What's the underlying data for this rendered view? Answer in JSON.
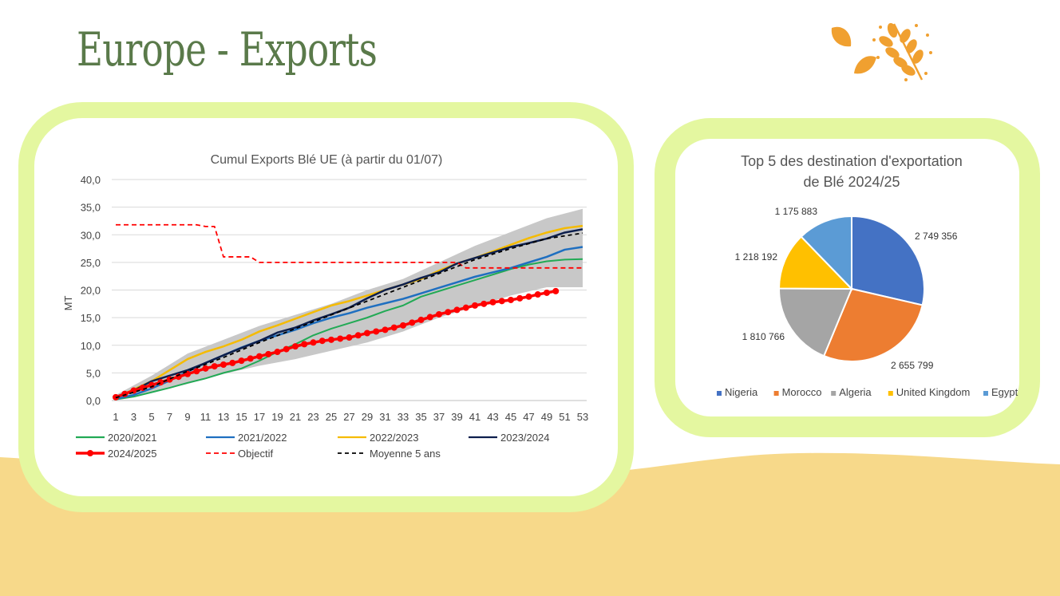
{
  "page": {
    "title": "Europe - Exports",
    "colors": {
      "title": "#5a7a4a",
      "frame": "#e4f7a0",
      "sand": "#f7d98a",
      "wheat": "#f0a030"
    },
    "icons": [
      "leaf-icon",
      "wheat-icon"
    ]
  },
  "chart_data": [
    {
      "type": "line",
      "title": "Cumul Exports Blé UE (à partir du 01/07)",
      "xlabel": "",
      "ylabel": "MT",
      "ylim": [
        0,
        40
      ],
      "yticks": [
        "0,0",
        "5,0",
        "10,0",
        "15,0",
        "20,0",
        "25,0",
        "30,0",
        "35,0",
        "40,0"
      ],
      "xticks": [
        1,
        3,
        5,
        7,
        9,
        11,
        13,
        15,
        17,
        19,
        21,
        23,
        25,
        27,
        29,
        31,
        33,
        35,
        37,
        39,
        41,
        43,
        45,
        47,
        49,
        51,
        53
      ],
      "grid": "horizontal",
      "legend_position": "bottom",
      "band": {
        "x": [
          1,
          5,
          9,
          13,
          17,
          21,
          25,
          29,
          33,
          37,
          41,
          45,
          49,
          53
        ],
        "min": [
          0.3,
          1.5,
          3.0,
          4.8,
          6.3,
          7.5,
          9.0,
          10.5,
          12.5,
          15.0,
          17.0,
          19.0,
          20.5,
          20.5
        ],
        "max": [
          1.0,
          4.5,
          8.5,
          11.0,
          13.5,
          15.5,
          17.5,
          20.0,
          22.0,
          25.0,
          28.0,
          30.5,
          33.0,
          34.7
        ]
      },
      "series": [
        {
          "name": "2020/2021",
          "color": "#22aa55",
          "width": 2,
          "x": [
            1,
            3,
            5,
            7,
            9,
            11,
            13,
            15,
            17,
            19,
            21,
            23,
            25,
            27,
            29,
            31,
            33,
            35,
            37,
            39,
            41,
            43,
            45,
            47,
            49,
            51,
            53
          ],
          "y": [
            0.2,
            0.7,
            1.5,
            2.3,
            3.2,
            4.0,
            5.0,
            5.8,
            7.2,
            8.8,
            10.2,
            11.8,
            13.0,
            14.0,
            15.0,
            16.2,
            17.2,
            18.8,
            19.8,
            20.8,
            21.8,
            22.8,
            23.8,
            24.6,
            25.2,
            25.5,
            25.6
          ]
        },
        {
          "name": "2021/2022",
          "color": "#1f6fc0",
          "width": 2.5,
          "x": [
            1,
            3,
            5,
            7,
            9,
            11,
            13,
            15,
            17,
            19,
            21,
            23,
            25,
            27,
            29,
            31,
            33,
            35,
            37,
            39,
            41,
            43,
            45,
            47,
            49,
            51,
            53
          ],
          "y": [
            0.3,
            1.0,
            2.2,
            3.6,
            5.2,
            6.8,
            8.2,
            9.6,
            10.8,
            11.8,
            12.8,
            14.0,
            15.0,
            15.8,
            16.8,
            17.6,
            18.4,
            19.4,
            20.4,
            21.4,
            22.4,
            23.2,
            24.0,
            25.0,
            26.0,
            27.3,
            27.8
          ]
        },
        {
          "name": "2022/2023",
          "color": "#f5bb00",
          "width": 2.5,
          "x": [
            1,
            3,
            5,
            7,
            9,
            11,
            13,
            15,
            17,
            19,
            21,
            23,
            25,
            27,
            29,
            31,
            33,
            35,
            37,
            39,
            41,
            43,
            45,
            47,
            49,
            51,
            53
          ],
          "y": [
            0.5,
            2.0,
            3.5,
            5.5,
            7.5,
            8.8,
            9.8,
            11.0,
            12.5,
            13.6,
            14.8,
            16.0,
            17.2,
            18.0,
            19.0,
            20.0,
            21.0,
            22.0,
            23.5,
            24.8,
            25.8,
            27.0,
            28.2,
            29.4,
            30.4,
            31.2,
            31.6
          ]
        },
        {
          "name": "2023/2024",
          "color": "#0d1f4d",
          "width": 2.5,
          "x": [
            1,
            3,
            5,
            7,
            9,
            11,
            13,
            15,
            17,
            19,
            21,
            23,
            25,
            27,
            29,
            31,
            33,
            35,
            37,
            39,
            41,
            43,
            45,
            47,
            49,
            51,
            53
          ],
          "y": [
            0.6,
            1.8,
            3.5,
            4.5,
            5.5,
            6.8,
            8.2,
            9.5,
            10.8,
            12.3,
            13.2,
            14.5,
            15.6,
            16.8,
            18.5,
            20.0,
            21.0,
            22.2,
            23.2,
            24.8,
            25.8,
            26.8,
            27.8,
            28.5,
            29.3,
            30.4,
            31.0
          ]
        },
        {
          "name": "2024/2025",
          "color": "#ff0000",
          "width": 3.5,
          "markers": true,
          "x": [
            1,
            2,
            3,
            4,
            5,
            6,
            7,
            8,
            9,
            10,
            11,
            12,
            13,
            14,
            15,
            16,
            17,
            18,
            19,
            20,
            21,
            22,
            23,
            24,
            25,
            26,
            27,
            28,
            29,
            30,
            31,
            32,
            33,
            34,
            35,
            36,
            37,
            38,
            39,
            40,
            41,
            42,
            43,
            44,
            45,
            46,
            47,
            48,
            49,
            50
          ],
          "y": [
            0.6,
            1.2,
            1.8,
            2.3,
            2.8,
            3.3,
            3.8,
            4.3,
            4.8,
            5.3,
            5.8,
            6.2,
            6.5,
            6.8,
            7.2,
            7.6,
            8.0,
            8.4,
            8.8,
            9.3,
            9.8,
            10.2,
            10.5,
            10.8,
            11.0,
            11.2,
            11.4,
            11.8,
            12.2,
            12.5,
            12.8,
            13.2,
            13.6,
            14.1,
            14.6,
            15.1,
            15.6,
            16.0,
            16.4,
            16.8,
            17.2,
            17.5,
            17.8,
            18.0,
            18.2,
            18.5,
            18.8,
            19.2,
            19.5,
            19.8
          ]
        },
        {
          "name": "Objectif",
          "color": "#ff0000",
          "width": 1.8,
          "dash": "6,4",
          "x": [
            1,
            10,
            11,
            12,
            13,
            15,
            16,
            17,
            39,
            40,
            41,
            53
          ],
          "y": [
            31.8,
            31.8,
            31.5,
            31.5,
            26.0,
            26.0,
            26.0,
            25.0,
            25.0,
            24.0,
            24.0,
            24.0
          ]
        },
        {
          "name": "Moyenne 5 ans",
          "color": "#000000",
          "width": 1.8,
          "dash": "5,4",
          "x": [
            1,
            5,
            9,
            13,
            17,
            21,
            25,
            29,
            33,
            37,
            41,
            45,
            49,
            53
          ],
          "y": [
            0.5,
            2.5,
            5.3,
            7.8,
            10.5,
            13.0,
            15.5,
            18.0,
            20.5,
            23.0,
            25.5,
            27.5,
            29.3,
            30.3
          ]
        }
      ]
    },
    {
      "type": "pie",
      "title": "Top 5 des destination d'exportation de Blé 2024/25",
      "title_lines": [
        "Top 5 des destination d'exportation",
        "de Blé 2024/25"
      ],
      "legend_position": "bottom",
      "slices": [
        {
          "name": "Nigeria",
          "value": 2749356,
          "label": "2 749 356",
          "color": "#4472c4"
        },
        {
          "name": "Morocco",
          "value": 2655799,
          "label": "2 655 799",
          "color": "#ed7d31"
        },
        {
          "name": "Algeria",
          "value": 1810766,
          "label": "1 810 766",
          "color": "#a5a5a5"
        },
        {
          "name": "United Kingdom",
          "value": 1218192,
          "label": "1 218 192",
          "color": "#ffc000"
        },
        {
          "name": "Egypt",
          "value": 1175883,
          "label": "1 175 883",
          "color": "#5b9bd5"
        }
      ]
    }
  ]
}
